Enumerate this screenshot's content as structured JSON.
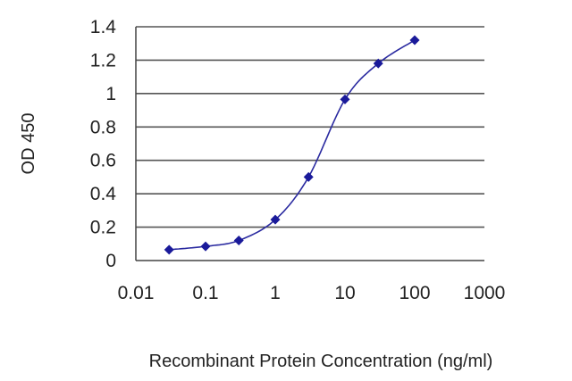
{
  "chart_data": {
    "type": "line",
    "title": "",
    "xlabel": "Recombinant Protein Concentration (ng/ml)",
    "ylabel": "OD 450",
    "x_scale": "log",
    "xlim": [
      0.01,
      1000
    ],
    "ylim": [
      0,
      1.4
    ],
    "x_ticks": [
      "0.01",
      "0.1",
      "1",
      "10",
      "100",
      "1000"
    ],
    "y_ticks": [
      "0",
      "0.2",
      "0.4",
      "0.6",
      "0.8",
      "1",
      "1.2",
      "1.4"
    ],
    "grid": "horizontal",
    "line_color": "#2a2aa0",
    "marker_color": "#1a1a9a",
    "plot_background": "#ffffff",
    "grid_color": "#555555",
    "series": [
      {
        "x": [
          0.03,
          0.1,
          0.3,
          1,
          3,
          10,
          30,
          100
        ],
        "y": [
          0.065,
          0.085,
          0.12,
          0.245,
          0.5,
          0.965,
          1.18,
          1.32
        ]
      }
    ]
  }
}
